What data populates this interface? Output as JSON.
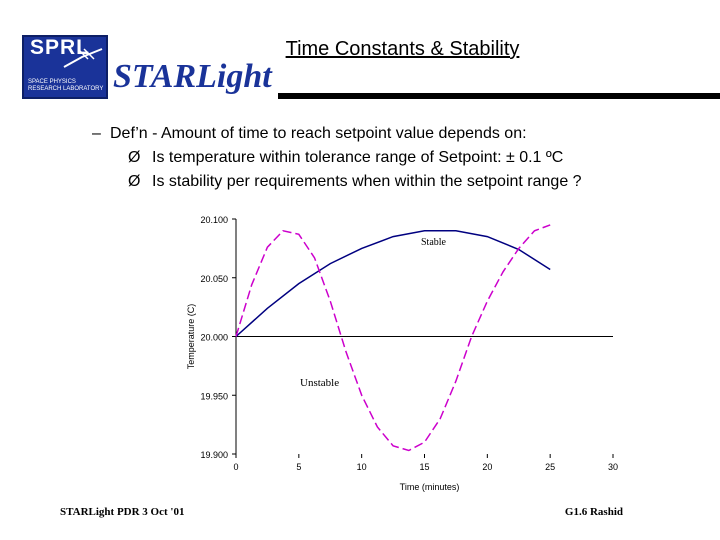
{
  "header": {
    "logo_letters": "SPRL",
    "logo_lab": "SPACE PHYSICS RESEARCH LABORATORY",
    "title": "Time Constants & Stability",
    "brand": "STARLight"
  },
  "content": {
    "bullet1": "Def’n - Amount of time to reach setpoint value depends on:",
    "sub1": "Is temperature within tolerance range of Setpoint:   ± 0.1 ºC",
    "sub2": "Is stability per requirements when within the setpoint range ?",
    "dash": "–",
    "arrow": "Ø"
  },
  "footer": {
    "left": "STARLight PDR  3  Oct  '01",
    "right": "G1.6  Rashid"
  },
  "chart_data": {
    "type": "line",
    "xlabel": "Time (minutes)",
    "ylabel": "Temperature (C)",
    "xlim": [
      0,
      30
    ],
    "ylim": [
      19.9,
      20.1
    ],
    "xticks": [
      "0",
      "5",
      "10",
      "15",
      "20",
      "25",
      "30"
    ],
    "yticks": [
      "19.900",
      "19.950",
      "20.000",
      "20.050",
      "20.100"
    ],
    "setpoint": 20.0,
    "annotations": [
      "Stable",
      "Unstable"
    ],
    "series": [
      {
        "name": "Stable",
        "color": "#000080",
        "style": "solid",
        "x": [
          0,
          2.5,
          5,
          7.5,
          10,
          12.5,
          15,
          17.5,
          20,
          22.5,
          25
        ],
        "y": [
          20.0,
          20.024,
          20.045,
          20.062,
          20.075,
          20.085,
          20.09,
          20.09,
          20.085,
          20.074,
          20.057
        ]
      },
      {
        "name": "Unstable",
        "color": "#cc00cc",
        "style": "dashed",
        "x": [
          0,
          1.25,
          2.5,
          3.75,
          5,
          6.25,
          7.5,
          8.75,
          10,
          11.25,
          12.5,
          13.75,
          15,
          16.25,
          17.5,
          18.75,
          20,
          21.25,
          22.5,
          23.75,
          25
        ],
        "y": [
          20.0,
          20.044,
          20.076,
          20.09,
          20.087,
          20.067,
          20.03,
          19.987,
          19.95,
          19.923,
          19.907,
          19.903,
          19.91,
          19.93,
          19.962,
          20.0,
          20.03,
          20.055,
          20.075,
          20.09,
          20.095
        ]
      }
    ]
  }
}
